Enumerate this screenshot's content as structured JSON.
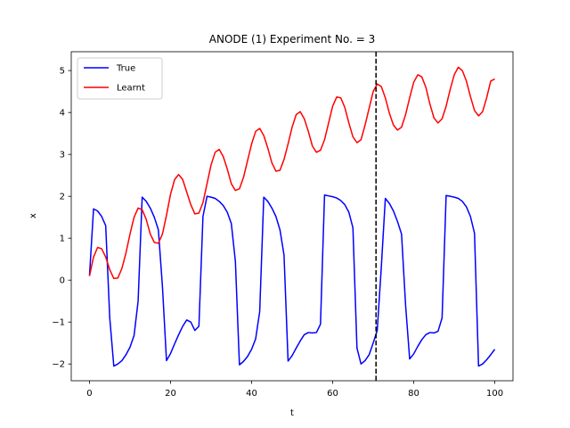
{
  "chart_data": {
    "type": "line",
    "title": "ANODE (1) Experiment No. = 3",
    "xlabel": "t",
    "ylabel": "x",
    "xlim": [
      -4.5,
      104.5
    ],
    "ylim": [
      -2.4,
      5.45
    ],
    "xticks": [
      0,
      20,
      40,
      60,
      80,
      100
    ],
    "xtick_labels": [
      "0",
      "20",
      "40",
      "60",
      "80",
      "100"
    ],
    "yticks": [
      -2,
      -1,
      0,
      1,
      2,
      3,
      4,
      5
    ],
    "ytick_labels": [
      "−2",
      "−1",
      "0",
      "1",
      "2",
      "3",
      "4",
      "5"
    ],
    "grid": false,
    "legend_position": "top-left",
    "vline": {
      "x": 70.7,
      "style": "dashed",
      "color": "#000000"
    },
    "series": [
      {
        "name": "True",
        "color": "#0000ff",
        "x": [
          0,
          1,
          2,
          3,
          4,
          5,
          6,
          7,
          8,
          9,
          10,
          11,
          12,
          13,
          14,
          15,
          16,
          17,
          18,
          19,
          20,
          21,
          22,
          23,
          24,
          25,
          26,
          27,
          28,
          29,
          30,
          31,
          32,
          33,
          34,
          35,
          36,
          37,
          38,
          39,
          40,
          41,
          42,
          43,
          44,
          45,
          46,
          47,
          48,
          49,
          50,
          51,
          52,
          53,
          54,
          55,
          56,
          57,
          58,
          59,
          60,
          61,
          62,
          63,
          64,
          65,
          66,
          67,
          68,
          69,
          70,
          71,
          72,
          73,
          74,
          75,
          76,
          77,
          78,
          79,
          80,
          81,
          82,
          83,
          84,
          85,
          86,
          87,
          88,
          89,
          90,
          91,
          92,
          93,
          94,
          95,
          96,
          97,
          98,
          99,
          100
        ],
        "y": [
          0.1,
          1.7,
          1.65,
          1.52,
          1.3,
          -0.9,
          -2.05,
          -2.0,
          -1.92,
          -1.78,
          -1.6,
          -1.32,
          -0.5,
          1.98,
          1.88,
          1.72,
          1.5,
          1.2,
          -0.15,
          -1.92,
          -1.75,
          -1.52,
          -1.3,
          -1.1,
          -0.95,
          -1.0,
          -1.2,
          -1.1,
          1.52,
          2.0,
          1.98,
          1.95,
          1.88,
          1.78,
          1.62,
          1.35,
          0.45,
          -2.02,
          -1.94,
          -1.82,
          -1.65,
          -1.4,
          -0.75,
          1.98,
          1.88,
          1.72,
          1.52,
          1.2,
          0.6,
          -1.93,
          -1.8,
          -1.62,
          -1.45,
          -1.3,
          -1.25,
          -1.26,
          -1.25,
          -1.05,
          2.03,
          2.01,
          1.99,
          1.96,
          1.9,
          1.8,
          1.62,
          1.25,
          -1.62,
          -2.0,
          -1.92,
          -1.78,
          -1.5,
          -1.2,
          0.3,
          1.95,
          1.83,
          1.65,
          1.4,
          1.1,
          -0.6,
          -1.88,
          -1.76,
          -1.58,
          -1.42,
          -1.3,
          -1.25,
          -1.26,
          -1.22,
          -0.9,
          2.02,
          2.0,
          1.98,
          1.95,
          1.88,
          1.75,
          1.52,
          1.12,
          -2.05,
          -2.0,
          -1.9,
          -1.78,
          -1.65
        ]
      },
      {
        "name": "Learnt",
        "color": "#ff0000",
        "x": [
          0,
          1,
          2,
          3,
          4,
          5,
          6,
          7,
          8,
          9,
          10,
          11,
          12,
          13,
          14,
          15,
          16,
          17,
          18,
          19,
          20,
          21,
          22,
          23,
          24,
          25,
          26,
          27,
          28,
          29,
          30,
          31,
          32,
          33,
          34,
          35,
          36,
          37,
          38,
          39,
          40,
          41,
          42,
          43,
          44,
          45,
          46,
          47,
          48,
          49,
          50,
          51,
          52,
          53,
          54,
          55,
          56,
          57,
          58,
          59,
          60,
          61,
          62,
          63,
          64,
          65,
          66,
          67,
          68,
          69,
          70,
          71,
          72,
          73,
          74,
          75,
          76,
          77,
          78,
          79,
          80,
          81,
          82,
          83,
          84,
          85,
          86,
          87,
          88,
          89,
          90,
          91,
          92,
          93,
          94,
          95,
          96,
          97,
          98,
          99,
          100
        ],
        "y": [
          0.1,
          0.55,
          0.78,
          0.75,
          0.55,
          0.25,
          0.04,
          0.05,
          0.28,
          0.65,
          1.1,
          1.5,
          1.72,
          1.68,
          1.45,
          1.1,
          0.9,
          0.88,
          1.1,
          1.55,
          2.05,
          2.4,
          2.52,
          2.4,
          2.1,
          1.8,
          1.58,
          1.6,
          1.85,
          2.3,
          2.75,
          3.05,
          3.12,
          2.95,
          2.65,
          2.3,
          2.14,
          2.18,
          2.45,
          2.85,
          3.25,
          3.55,
          3.62,
          3.45,
          3.15,
          2.8,
          2.6,
          2.62,
          2.88,
          3.25,
          3.65,
          3.95,
          4.02,
          3.85,
          3.55,
          3.2,
          3.05,
          3.1,
          3.35,
          3.75,
          4.15,
          4.37,
          4.35,
          4.12,
          3.75,
          3.42,
          3.28,
          3.35,
          3.7,
          4.1,
          4.5,
          4.68,
          4.62,
          4.35,
          3.98,
          3.7,
          3.58,
          3.65,
          3.95,
          4.35,
          4.72,
          4.9,
          4.85,
          4.6,
          4.2,
          3.87,
          3.75,
          3.85,
          4.15,
          4.55,
          4.9,
          5.08,
          5.0,
          4.75,
          4.38,
          4.05,
          3.92,
          4.02,
          4.35,
          4.75,
          4.8
        ]
      }
    ]
  }
}
